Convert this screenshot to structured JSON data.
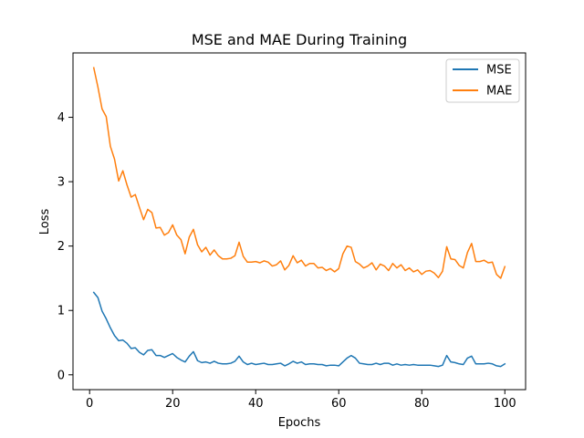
{
  "chart_data": {
    "type": "line",
    "title": "MSE and MAE During Training",
    "xlabel": "Epochs",
    "ylabel": "Loss",
    "xlim": [
      -4,
      105
    ],
    "ylim": [
      -0.23,
      5.0
    ],
    "xticks": [
      0,
      20,
      40,
      60,
      80,
      100
    ],
    "yticks": [
      0,
      1,
      2,
      3,
      4
    ],
    "grid": false,
    "legend": "top-right",
    "x": [
      1,
      2,
      3,
      4,
      5,
      6,
      7,
      8,
      9,
      10,
      11,
      12,
      13,
      14,
      15,
      16,
      17,
      18,
      19,
      20,
      21,
      22,
      23,
      24,
      25,
      26,
      27,
      28,
      29,
      30,
      31,
      32,
      33,
      34,
      35,
      36,
      37,
      38,
      39,
      40,
      41,
      42,
      43,
      44,
      45,
      46,
      47,
      48,
      49,
      50,
      51,
      52,
      53,
      54,
      55,
      56,
      57,
      58,
      59,
      60,
      61,
      62,
      63,
      64,
      65,
      66,
      67,
      68,
      69,
      70,
      71,
      72,
      73,
      74,
      75,
      76,
      77,
      78,
      79,
      80,
      81,
      82,
      83,
      84,
      85,
      86,
      87,
      88,
      89,
      90,
      91,
      92,
      93,
      94,
      95,
      96,
      97,
      98,
      99,
      100
    ],
    "series": [
      {
        "name": "MSE",
        "color": "#1f77b4",
        "values": [
          1.28,
          1.2,
          0.99,
          0.87,
          0.73,
          0.61,
          0.53,
          0.54,
          0.49,
          0.41,
          0.42,
          0.35,
          0.31,
          0.38,
          0.39,
          0.3,
          0.3,
          0.27,
          0.3,
          0.33,
          0.27,
          0.23,
          0.2,
          0.29,
          0.36,
          0.22,
          0.19,
          0.2,
          0.18,
          0.21,
          0.18,
          0.17,
          0.17,
          0.18,
          0.21,
          0.29,
          0.2,
          0.16,
          0.18,
          0.16,
          0.17,
          0.18,
          0.16,
          0.16,
          0.17,
          0.18,
          0.14,
          0.17,
          0.21,
          0.18,
          0.2,
          0.16,
          0.17,
          0.17,
          0.16,
          0.16,
          0.14,
          0.15,
          0.15,
          0.14,
          0.2,
          0.26,
          0.3,
          0.26,
          0.18,
          0.17,
          0.16,
          0.16,
          0.18,
          0.16,
          0.18,
          0.18,
          0.15,
          0.17,
          0.15,
          0.16,
          0.15,
          0.16,
          0.15,
          0.15,
          0.15,
          0.15,
          0.14,
          0.13,
          0.15,
          0.3,
          0.2,
          0.19,
          0.17,
          0.16,
          0.26,
          0.29,
          0.17,
          0.17,
          0.17,
          0.18,
          0.17,
          0.14,
          0.13,
          0.17
        ]
      },
      {
        "name": "MAE",
        "color": "#ff7f0e",
        "values": [
          4.77,
          4.47,
          4.13,
          4.01,
          3.55,
          3.35,
          3.01,
          3.17,
          2.95,
          2.76,
          2.8,
          2.6,
          2.41,
          2.57,
          2.52,
          2.28,
          2.29,
          2.17,
          2.21,
          2.33,
          2.17,
          2.1,
          1.88,
          2.14,
          2.26,
          2.02,
          1.91,
          1.98,
          1.86,
          1.94,
          1.85,
          1.8,
          1.8,
          1.81,
          1.85,
          2.06,
          1.84,
          1.75,
          1.75,
          1.76,
          1.74,
          1.77,
          1.75,
          1.69,
          1.71,
          1.77,
          1.63,
          1.7,
          1.85,
          1.74,
          1.78,
          1.69,
          1.73,
          1.73,
          1.66,
          1.67,
          1.62,
          1.65,
          1.6,
          1.65,
          1.88,
          2.0,
          1.98,
          1.76,
          1.72,
          1.66,
          1.69,
          1.74,
          1.63,
          1.72,
          1.69,
          1.62,
          1.73,
          1.66,
          1.71,
          1.62,
          1.66,
          1.6,
          1.63,
          1.56,
          1.61,
          1.62,
          1.58,
          1.51,
          1.61,
          1.99,
          1.8,
          1.79,
          1.7,
          1.66,
          1.9,
          2.04,
          1.76,
          1.76,
          1.78,
          1.74,
          1.75,
          1.56,
          1.5,
          1.68
        ]
      }
    ]
  }
}
